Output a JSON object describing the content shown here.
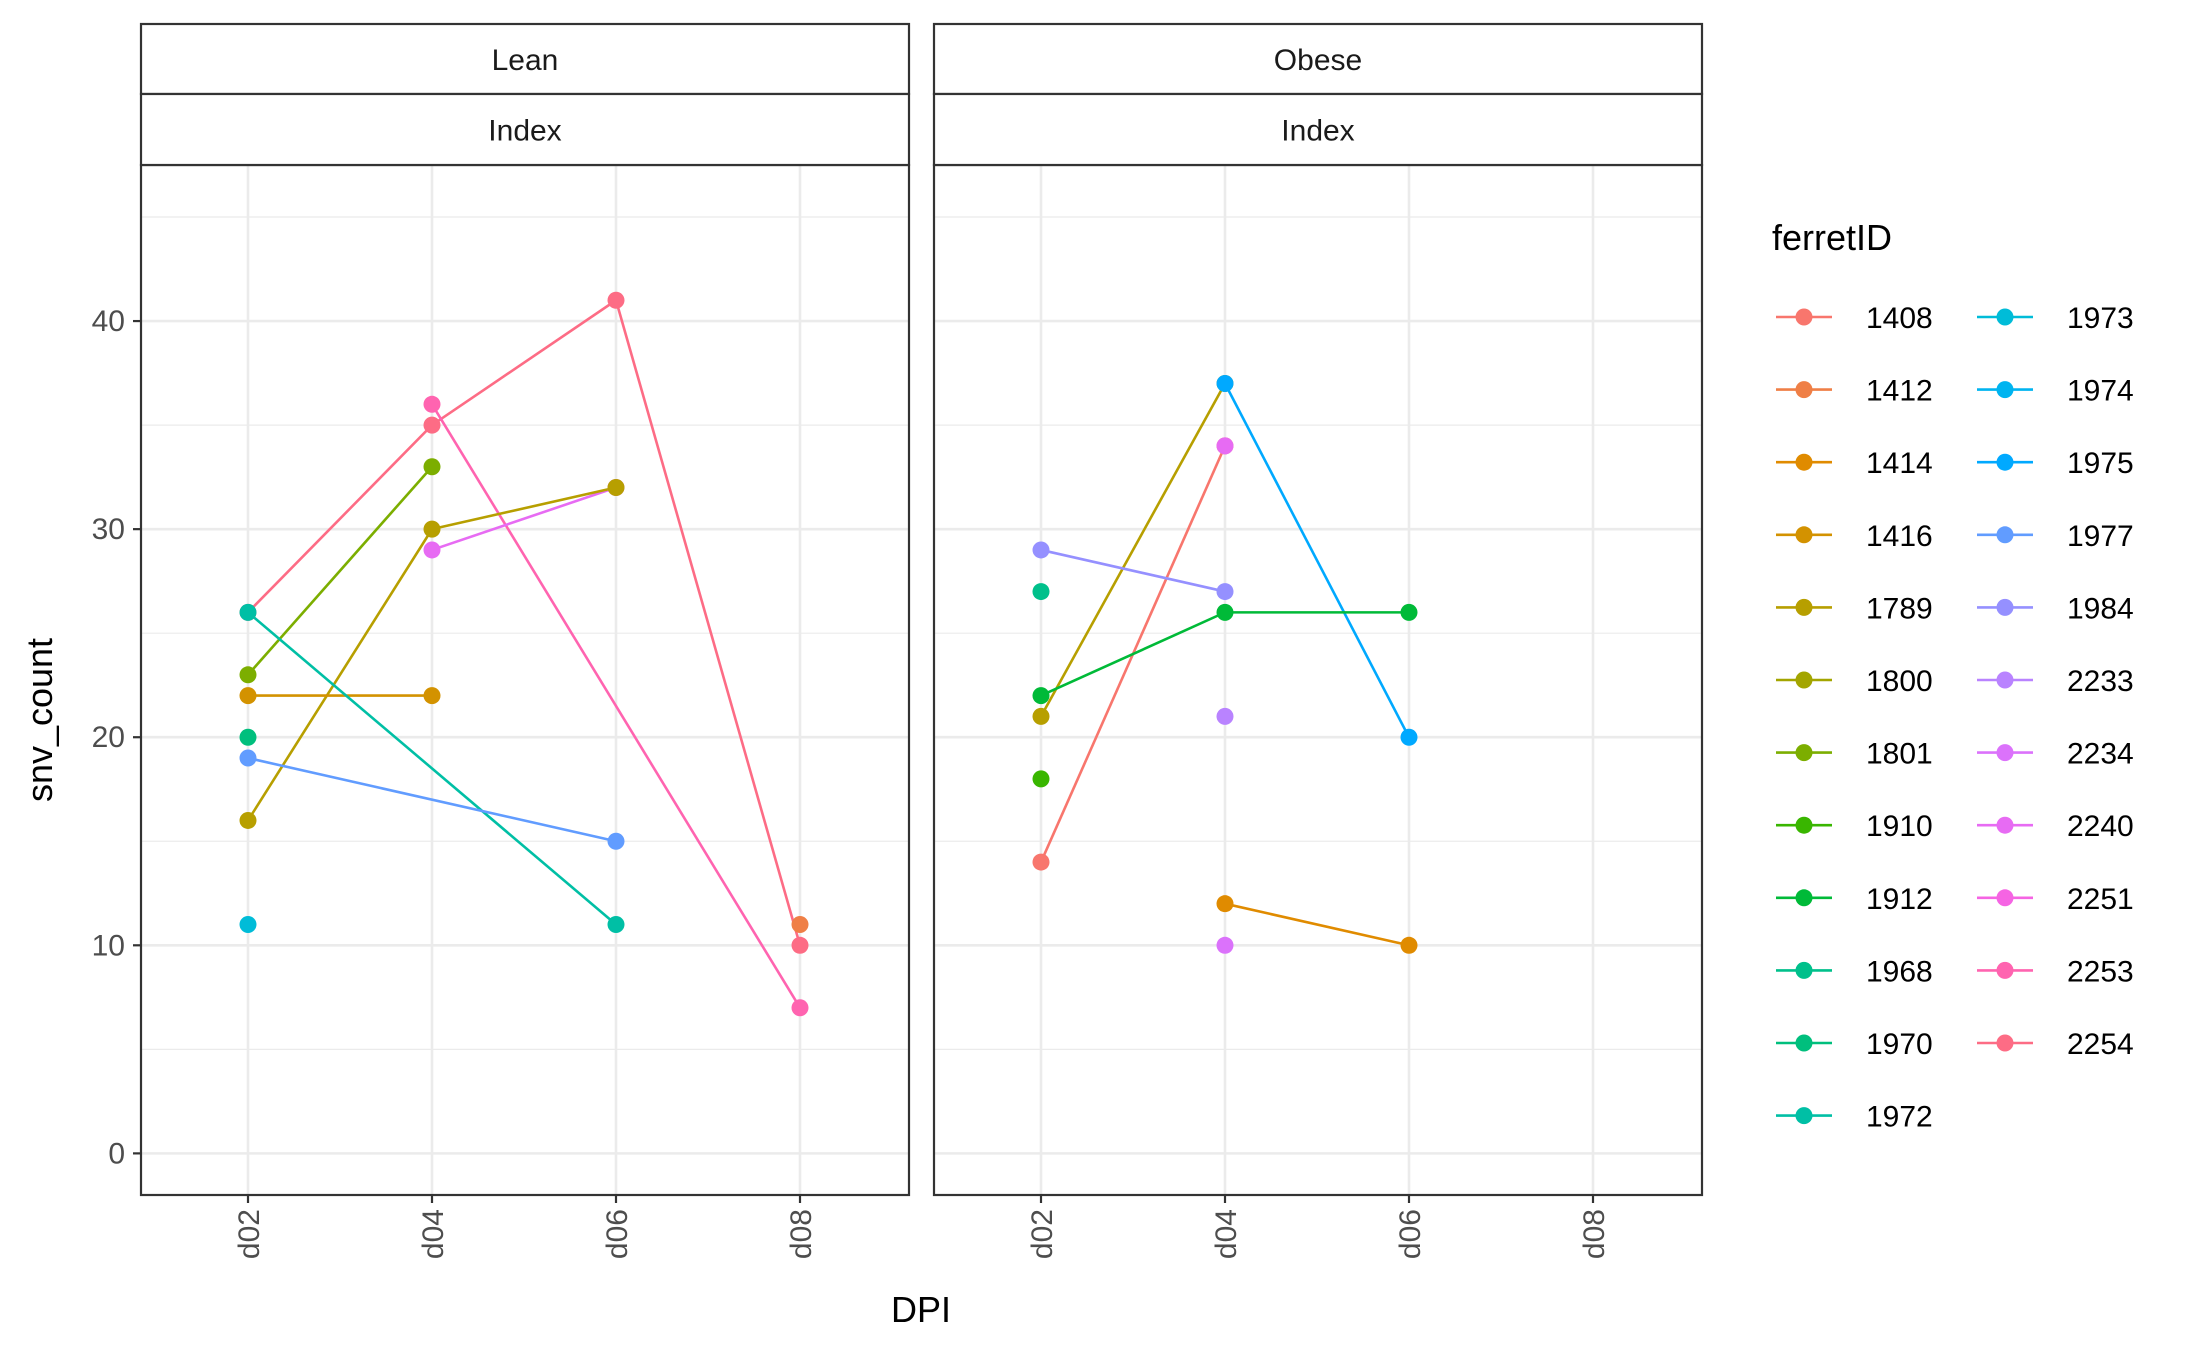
{
  "chart_data": {
    "type": "line",
    "x_label": "DPI",
    "y_label": "snv_count",
    "x_categories": [
      "d02",
      "d04",
      "d06",
      "d08"
    ],
    "y_ticks": [
      0,
      10,
      20,
      30,
      40
    ],
    "ylim": [
      -2,
      47.5
    ],
    "grid": true,
    "legend": {
      "title": "ferretID",
      "placement": "right",
      "columns": [
        [
          "1408",
          "1412",
          "1414",
          "1416",
          "1789",
          "1800",
          "1801",
          "1910",
          "1912",
          "1968",
          "1970",
          "1972"
        ],
        [
          "1973",
          "1974",
          "1975",
          "1977",
          "1984",
          "2233",
          "2234",
          "2240",
          "2251",
          "2253",
          "2254"
        ]
      ]
    },
    "ferret_colors": {
      "1408": "#F8766D",
      "1412": "#EF7F46",
      "1414": "#E08B00",
      "1416": "#D39200",
      "1789": "#B79F00",
      "1800": "#A3A500",
      "1801": "#7CAE00",
      "1910": "#39B600",
      "1912": "#00BA38",
      "1968": "#00C08B",
      "1970": "#00BF7D",
      "1972": "#00BFA5",
      "1973": "#00BCD8",
      "1974": "#00B4F0",
      "1975": "#00A9FF",
      "1977": "#619CFF",
      "1984": "#9590FF",
      "2233": "#B983FF",
      "2234": "#DB72FB",
      "2240": "#E76BF3",
      "2251": "#F564E3",
      "2253": "#FF64B0",
      "2254": "#FD6C85"
    },
    "panels": [
      {
        "strip_top": "Lean",
        "strip_bottom": "Index",
        "series": [
          {
            "id": "2254",
            "points": [
              [
                "d02",
                26
              ],
              [
                "d04",
                35
              ],
              [
                "d06",
                41
              ],
              [
                "d08",
                10
              ]
            ]
          },
          {
            "id": "2253",
            "points": [
              [
                "d04",
                36
              ],
              [
                "d08",
                7
              ]
            ]
          },
          {
            "id": "2240",
            "points": [
              [
                "d04",
                29
              ],
              [
                "d06",
                32
              ]
            ]
          },
          {
            "id": "1789",
            "points": [
              [
                "d02",
                16
              ],
              [
                "d04",
                30
              ],
              [
                "d06",
                32
              ]
            ]
          },
          {
            "id": "1801",
            "points": [
              [
                "d02",
                23
              ],
              [
                "d04",
                33
              ]
            ]
          },
          {
            "id": "1416",
            "points": [
              [
                "d02",
                22
              ],
              [
                "d04",
                22
              ]
            ]
          },
          {
            "id": "1972",
            "points": [
              [
                "d02",
                26
              ],
              [
                "d06",
                11
              ]
            ]
          },
          {
            "id": "1977",
            "points": [
              [
                "d02",
                19
              ],
              [
                "d06",
                15
              ]
            ]
          },
          {
            "id": "1970",
            "points": [
              [
                "d02",
                20
              ]
            ]
          },
          {
            "id": "1973",
            "points": [
              [
                "d02",
                11
              ]
            ]
          },
          {
            "id": "1412",
            "points": [
              [
                "d08",
                11
              ]
            ]
          }
        ]
      },
      {
        "strip_top": "Obese",
        "strip_bottom": "Index",
        "series": [
          {
            "id": "1408",
            "points": [
              [
                "d02",
                14
              ],
              [
                "d04",
                34
              ]
            ]
          },
          {
            "id": "1789",
            "points": [
              [
                "d02",
                21
              ],
              [
                "d04",
                37
              ]
            ]
          },
          {
            "id": "1975",
            "points": [
              [
                "d04",
                37
              ],
              [
                "d06",
                20
              ]
            ]
          },
          {
            "id": "1912",
            "points": [
              [
                "d02",
                22
              ],
              [
                "d04",
                26
              ],
              [
                "d06",
                26
              ]
            ]
          },
          {
            "id": "1984",
            "points": [
              [
                "d02",
                29
              ],
              [
                "d04",
                27
              ]
            ]
          },
          {
            "id": "1414",
            "points": [
              [
                "d04",
                12
              ],
              [
                "d06",
                10
              ]
            ]
          },
          {
            "id": "1968",
            "points": [
              [
                "d02",
                27
              ]
            ]
          },
          {
            "id": "1910",
            "points": [
              [
                "d02",
                18
              ]
            ]
          },
          {
            "id": "2240",
            "points": [
              [
                "d04",
                34
              ]
            ]
          },
          {
            "id": "2233",
            "points": [
              [
                "d04",
                21
              ]
            ]
          },
          {
            "id": "2234",
            "points": [
              [
                "d04",
                10
              ]
            ]
          }
        ]
      }
    ]
  }
}
